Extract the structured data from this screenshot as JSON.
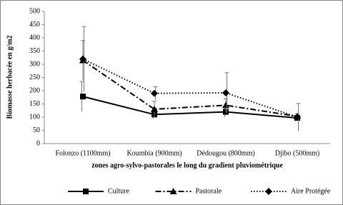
{
  "chart_data": {
    "type": "line",
    "x_label": "zones agro-sylvo-pastorales le long du gradient pluviométrique",
    "y_label": "Biomasse herbacée en g/m2",
    "categories": [
      "Folonzo (1100mm)",
      "Koumbia (900mm)",
      "Dédougou (800mm)",
      "Djibo (500mm)"
    ],
    "series": [
      {
        "name": "Culture",
        "color": "#000000",
        "dash": "solid",
        "marker": "square",
        "values": [
          178,
          110,
          120,
          97
        ],
        "errors": [
          57,
          15,
          20,
          10
        ]
      },
      {
        "name": "Pastorale",
        "color": "#000000",
        "dash": "dashdot",
        "marker": "triangle",
        "values": [
          315,
          130,
          145,
          103
        ],
        "errors": [
          75,
          30,
          25,
          10
        ]
      },
      {
        "name": "Aire Protégée",
        "color": "#000000",
        "dash": "dotted",
        "marker": "diamond",
        "values": [
          320,
          190,
          192,
          100
        ],
        "errors": [
          123,
          25,
          76,
          52
        ]
      }
    ],
    "ylim": [
      0,
      500
    ],
    "yticks": [
      0,
      50,
      100,
      150,
      200,
      250,
      300,
      350,
      400,
      450,
      500
    ],
    "grid": false,
    "legend": "bottom"
  }
}
